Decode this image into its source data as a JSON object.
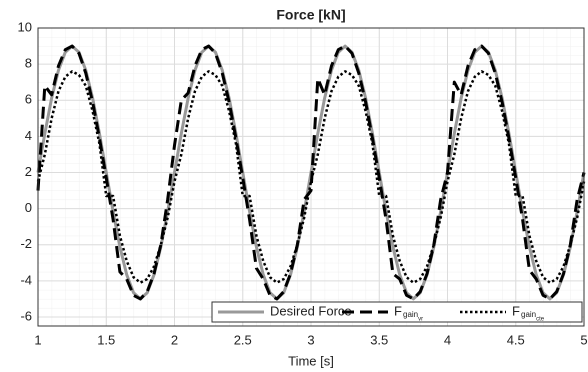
{
  "chart_data": {
    "type": "line",
    "title": "Force [kN]",
    "x_label": "Time [s]",
    "x": [
      1,
      1.05,
      1.1,
      1.15,
      1.2,
      1.25,
      1.3,
      1.35,
      1.4,
      1.45,
      1.5,
      1.55,
      1.6,
      1.65,
      1.7,
      1.75,
      1.8,
      1.85,
      1.9,
      1.95,
      2,
      2.05,
      2.1,
      2.15,
      2.2,
      2.25,
      2.3,
      2.35,
      2.4,
      2.45,
      2.5,
      2.55,
      2.6,
      2.65,
      2.7,
      2.75,
      2.8,
      2.85,
      2.9,
      2.95,
      3,
      3.05,
      3.1,
      3.15,
      3.2,
      3.25,
      3.3,
      3.35,
      3.4,
      3.45,
      3.5,
      3.55,
      3.6,
      3.65,
      3.7,
      3.75,
      3.8,
      3.85,
      3.9,
      3.95,
      4,
      4.05,
      4.1,
      4.15,
      4.2,
      4.25,
      4.3,
      4.35,
      4.4,
      4.45,
      4.5,
      4.55,
      4.6,
      4.65,
      4.7,
      4.75,
      4.8,
      4.85,
      4.9,
      4.95,
      5
    ],
    "series": [
      {
        "name": "Desired Force",
        "color": "#999999",
        "dash": "solid",
        "values": [
          2,
          4.16,
          6.12,
          7.66,
          8.66,
          9,
          8.66,
          7.66,
          6.12,
          4.16,
          2,
          -0.16,
          -2.12,
          -3.66,
          -4.66,
          -5,
          -4.66,
          -3.66,
          -2.12,
          -0.16,
          2,
          4.16,
          6.12,
          7.66,
          8.66,
          9,
          8.66,
          7.66,
          6.12,
          4.16,
          2,
          -0.16,
          -2.12,
          -3.66,
          -4.66,
          -5,
          -4.66,
          -3.66,
          -2.12,
          -0.16,
          2,
          4.16,
          6.12,
          7.66,
          8.66,
          9,
          8.66,
          7.66,
          6.12,
          4.16,
          2,
          -0.16,
          -2.12,
          -3.66,
          -4.66,
          -5,
          -4.66,
          -3.66,
          -2.12,
          -0.16,
          2,
          4.16,
          6.12,
          7.66,
          8.66,
          9,
          8.66,
          7.66,
          6.12,
          4.16,
          2,
          -0.16,
          -2.12,
          -3.66,
          -4.66,
          -5,
          -4.66,
          -3.66,
          -2.12,
          -0.16,
          2
        ]
      },
      {
        "name": "F",
        "subscript": "gain",
        "subsubscript": "vr",
        "color": "#000000",
        "dash": "dashed",
        "values": [
          1,
          6.8,
          6.3,
          7.9,
          8.8,
          9,
          8.6,
          7.5,
          5.9,
          3.9,
          1.7,
          -0.6,
          -3.5,
          -3.9,
          -4.8,
          -5,
          -4.6,
          -3.6,
          -2.0,
          0.5,
          3.5,
          6.0,
          6.4,
          7.9,
          8.8,
          9,
          8.6,
          7.5,
          5.9,
          3.9,
          1.7,
          -0.6,
          -3.3,
          -3.9,
          -4.8,
          -5,
          -4.6,
          -3.6,
          -2.0,
          0.5,
          1,
          7.2,
          6.3,
          7.9,
          8.8,
          9,
          8.6,
          7.5,
          5.9,
          3.9,
          1.7,
          -0.6,
          -3.6,
          -3.9,
          -4.8,
          -5,
          -4.6,
          -3.6,
          -2.0,
          0.5,
          2,
          7.0,
          6.3,
          7.9,
          8.8,
          9,
          8.6,
          7.5,
          5.9,
          3.9,
          1.7,
          -0.6,
          -3.4,
          -3.9,
          -4.8,
          -5,
          -4.6,
          -3.6,
          -2.0,
          0.5,
          2
        ]
      },
      {
        "name": "F",
        "subscript": "gain",
        "subsubscript": "cte",
        "color": "#000000",
        "dash": "dotted",
        "values": [
          1.5,
          3.0,
          5.0,
          6.5,
          7.3,
          7.6,
          7.4,
          6.8,
          5.4,
          3.6,
          0.7,
          0.7,
          -1.5,
          -2.9,
          -3.8,
          -4.1,
          -3.9,
          -3.2,
          -2.0,
          -0.5,
          1.5,
          3.0,
          5.0,
          6.5,
          7.3,
          7.6,
          7.4,
          6.8,
          5.4,
          3.6,
          0.7,
          0.7,
          -1.5,
          -2.9,
          -3.8,
          -4.1,
          -3.9,
          -3.2,
          -2.0,
          -0.5,
          1.5,
          3.0,
          5.0,
          6.5,
          7.3,
          7.6,
          7.4,
          6.8,
          5.4,
          3.6,
          0.7,
          0.7,
          -1.5,
          -2.9,
          -3.8,
          -4.1,
          -3.9,
          -3.2,
          -2.0,
          -0.5,
          1.5,
          3.0,
          5.0,
          6.5,
          7.3,
          7.6,
          7.4,
          6.8,
          5.4,
          3.6,
          0.7,
          0.7,
          -1.5,
          -2.9,
          -3.8,
          -4.1,
          -3.9,
          -3.2,
          -2.0,
          -0.5,
          1.5
        ]
      }
    ],
    "xlim": [
      1,
      5
    ],
    "ylim": [
      -6.5,
      10
    ],
    "xticks": [
      1,
      1.5,
      2,
      2.5,
      3,
      3.5,
      4,
      4.5,
      5
    ],
    "yticks": [
      -6,
      -4,
      -2,
      0,
      2,
      4,
      6,
      8,
      10
    ],
    "grid": true,
    "legend": "lower right"
  }
}
